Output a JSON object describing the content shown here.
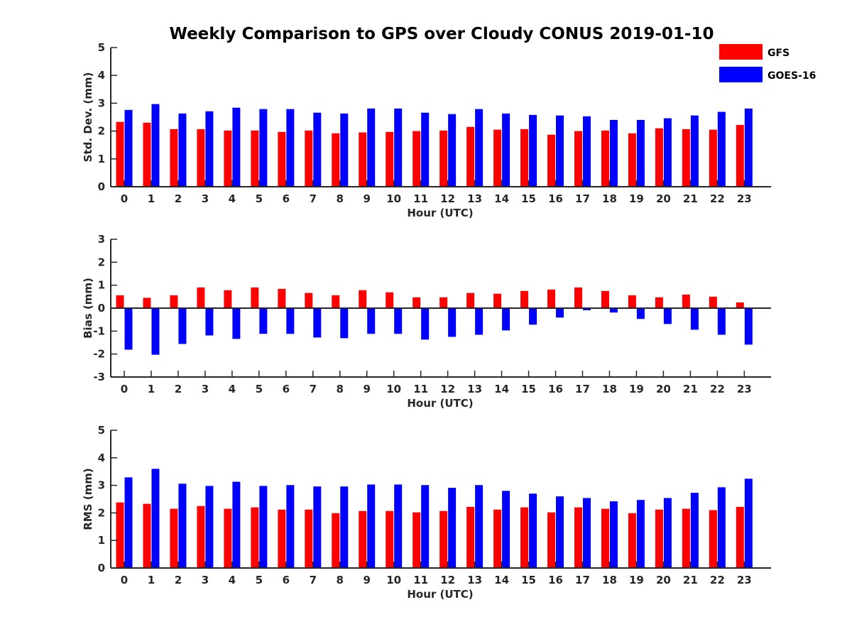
{
  "title": "Weekly Comparison to GPS over Cloudy CONUS 2019-01-10",
  "legend": [
    {
      "label": "GFS",
      "color": "#ff0000"
    },
    {
      "label": "GOES-16",
      "color": "#0000ff"
    }
  ],
  "chart_data": [
    {
      "type": "bar",
      "ylabel": "Std. Dev. (mm)",
      "xlabel": "Hour (UTC)",
      "ylim": [
        0,
        5
      ],
      "yticks": [
        0,
        1,
        2,
        3,
        4,
        5
      ],
      "categories": [
        "0",
        "1",
        "2",
        "3",
        "4",
        "5",
        "6",
        "7",
        "8",
        "9",
        "10",
        "11",
        "12",
        "13",
        "14",
        "15",
        "16",
        "17",
        "18",
        "19",
        "20",
        "21",
        "22",
        "23"
      ],
      "series": [
        {
          "name": "GFS",
          "color": "#ff0000",
          "values": [
            2.33,
            2.3,
            2.07,
            2.07,
            2.02,
            2.02,
            1.97,
            2.02,
            1.92,
            1.95,
            1.97,
            2.0,
            2.02,
            2.15,
            2.05,
            2.07,
            1.87,
            2.0,
            2.02,
            1.92,
            2.1,
            2.07,
            2.05,
            2.22
          ]
        },
        {
          "name": "GOES-16",
          "color": "#0000ff",
          "values": [
            2.76,
            2.97,
            2.63,
            2.71,
            2.84,
            2.79,
            2.79,
            2.66,
            2.63,
            2.81,
            2.81,
            2.66,
            2.61,
            2.79,
            2.63,
            2.58,
            2.56,
            2.53,
            2.4,
            2.4,
            2.46,
            2.56,
            2.69,
            2.81
          ]
        }
      ]
    },
    {
      "type": "bar",
      "ylabel": "Bias (mm)",
      "xlabel": "Hour (UTC)",
      "ylim": [
        -3,
        3
      ],
      "yticks": [
        -3,
        -2,
        -1,
        0,
        1,
        2,
        3
      ],
      "baseline": 0,
      "categories": [
        "0",
        "1",
        "2",
        "3",
        "4",
        "5",
        "6",
        "7",
        "8",
        "9",
        "10",
        "11",
        "12",
        "13",
        "14",
        "15",
        "16",
        "17",
        "18",
        "19",
        "20",
        "21",
        "22",
        "23"
      ],
      "series": [
        {
          "name": "GFS",
          "color": "#ff0000",
          "values": [
            0.56,
            0.45,
            0.56,
            0.9,
            0.78,
            0.9,
            0.84,
            0.66,
            0.56,
            0.78,
            0.69,
            0.47,
            0.47,
            0.66,
            0.63,
            0.75,
            0.81,
            0.9,
            0.75,
            0.56,
            0.47,
            0.59,
            0.5,
            0.25
          ]
        },
        {
          "name": "GOES-16",
          "color": "#0000ff",
          "values": [
            -1.81,
            -2.03,
            -1.56,
            -1.19,
            -1.34,
            -1.12,
            -1.12,
            -1.28,
            -1.31,
            -1.12,
            -1.12,
            -1.37,
            -1.25,
            -1.16,
            -0.97,
            -0.72,
            -0.41,
            -0.09,
            -0.19,
            -0.47,
            -0.69,
            -0.94,
            -1.16,
            -1.59
          ]
        }
      ]
    },
    {
      "type": "bar",
      "ylabel": "RMS (mm)",
      "xlabel": "Hour (UTC)",
      "ylim": [
        0,
        5
      ],
      "yticks": [
        0,
        1,
        2,
        3,
        4,
        5
      ],
      "categories": [
        "0",
        "1",
        "2",
        "3",
        "4",
        "5",
        "6",
        "7",
        "8",
        "9",
        "10",
        "11",
        "12",
        "13",
        "14",
        "15",
        "16",
        "17",
        "18",
        "19",
        "20",
        "21",
        "22",
        "23"
      ],
      "series": [
        {
          "name": "GFS",
          "color": "#ff0000",
          "values": [
            2.38,
            2.33,
            2.15,
            2.25,
            2.15,
            2.2,
            2.12,
            2.12,
            1.99,
            2.07,
            2.07,
            2.02,
            2.07,
            2.22,
            2.12,
            2.2,
            2.02,
            2.2,
            2.15,
            1.99,
            2.12,
            2.15,
            2.1,
            2.22
          ]
        },
        {
          "name": "GOES-16",
          "color": "#0000ff",
          "values": [
            3.29,
            3.6,
            3.06,
            2.98,
            3.13,
            2.98,
            3.01,
            2.96,
            2.96,
            3.03,
            3.03,
            3.01,
            2.91,
            3.01,
            2.8,
            2.7,
            2.6,
            2.54,
            2.42,
            2.47,
            2.54,
            2.73,
            2.93,
            3.24
          ]
        }
      ]
    }
  ]
}
